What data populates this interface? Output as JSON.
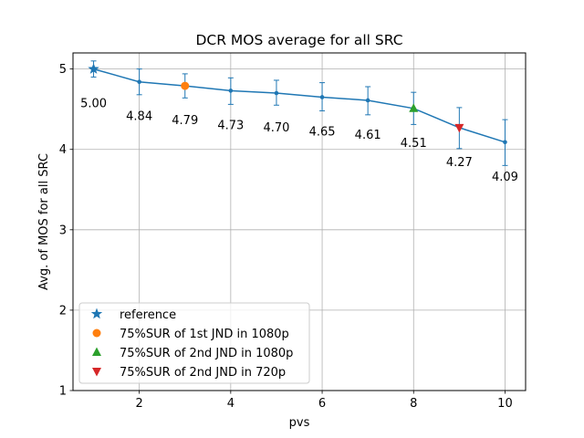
{
  "chart_data": {
    "type": "line",
    "title": "DCR MOS average for all SRC",
    "xlabel": "pvs",
    "ylabel": "Avg. of MOS for all SRC",
    "xlim": [
      0.55,
      10.45
    ],
    "ylim": [
      1,
      5.2
    ],
    "xticks": [
      2,
      4,
      6,
      8,
      10
    ],
    "yticks": [
      1,
      2,
      3,
      4,
      5
    ],
    "grid": true,
    "x": [
      1,
      2,
      3,
      4,
      5,
      6,
      7,
      8,
      9,
      10
    ],
    "y": [
      5.0,
      4.84,
      4.79,
      4.73,
      4.7,
      4.65,
      4.61,
      4.51,
      4.27,
      4.09
    ],
    "err_low": [
      4.9,
      4.68,
      4.64,
      4.56,
      4.55,
      4.48,
      4.43,
      4.31,
      4.01,
      3.8
    ],
    "err_high": [
      5.1,
      5.0,
      4.94,
      4.89,
      4.86,
      4.83,
      4.78,
      4.71,
      4.52,
      4.37
    ],
    "data_labels": [
      "5.00",
      "4.84",
      "4.79",
      "4.73",
      "4.70",
      "4.65",
      "4.61",
      "4.51",
      "4.27",
      "4.09"
    ],
    "series_color": "#1f77b4",
    "markers": [
      {
        "name": "reference",
        "x": 1,
        "y": 5.0,
        "shape": "star",
        "color": "#1f77b4"
      },
      {
        "name": "75%SUR of 1st JND in 1080p",
        "x": 3,
        "y": 4.79,
        "shape": "circle",
        "color": "#ff7f0e"
      },
      {
        "name": "75%SUR of 2nd JND in 1080p",
        "x": 8,
        "y": 4.51,
        "shape": "triangle-up",
        "color": "#2ca02c"
      },
      {
        "name": "75%SUR of 2nd JND in 720p",
        "x": 9,
        "y": 4.27,
        "shape": "triangle-down",
        "color": "#d62728"
      }
    ],
    "legend_position": "lower-left"
  }
}
